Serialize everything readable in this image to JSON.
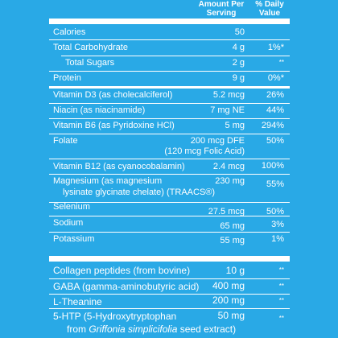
{
  "header": {
    "amount_line1": "Amount Per",
    "amount_line2": "Serving",
    "dv_line1": "% Daily",
    "dv_line2": "Value"
  },
  "rows": [
    {
      "label": "Calories",
      "amount": "50",
      "dv": ""
    },
    {
      "label": "Total Carbohydrate",
      "amount": "4 g",
      "dv": "1%*"
    },
    {
      "label": "Total Sugars",
      "amount": "2 g",
      "dv": "**"
    },
    {
      "label": "Protein",
      "amount": "9 g",
      "dv": "0%*"
    },
    {
      "label": "Vitamin D3 (as cholecalciferol)",
      "amount": "5.2 mcg",
      "dv": "26%"
    },
    {
      "label": "Niacin (as niacinamide)",
      "amount": "7 mg NE",
      "dv": "44%"
    },
    {
      "label": "Vitamin B6 (as Pyridoxine HCl)",
      "amount": "5 mg",
      "dv": "294%"
    },
    {
      "label": "Folate",
      "amount_line1": "200 mcg DFE",
      "amount_line2": "(120 mcg Folic Acid)",
      "dv": "50%"
    },
    {
      "label": "Vitamin B12 (as cyanocobalamin)",
      "amount": "2.4 mcg",
      "dv": "100%"
    },
    {
      "label_line1": "Magnesium (as magnesium",
      "label_line2": "lysinate glycinate chelate) (TRAACS®)",
      "amount": "230 mg",
      "dv": "55%"
    },
    {
      "label": "Selenium",
      "amount": "27.5 mcg",
      "dv": "50%"
    },
    {
      "label": "Sodium",
      "amount": "65 mg",
      "dv": "3%"
    },
    {
      "label": "Potassium",
      "amount": "55 mg",
      "dv": "1%"
    },
    {
      "label": "Collagen peptides (from bovine)",
      "amount": "10 g",
      "dv": "**"
    },
    {
      "label": "GABA (gamma-aminobutyric acid)",
      "amount": "400 mg",
      "dv": "**"
    },
    {
      "label": "L-Theanine",
      "amount": "200 mg",
      "dv": "**"
    },
    {
      "label_line1": "5-HTP (5-Hydroxytryptophan",
      "label_line2_pre": "from ",
      "label_line2_italic": "Griffonia simplicifolia",
      "label_line2_post": " seed extract)",
      "amount": "50 mg",
      "dv": "**"
    }
  ],
  "colors": {
    "background": "#29a9e6",
    "text": "#ffffff"
  }
}
